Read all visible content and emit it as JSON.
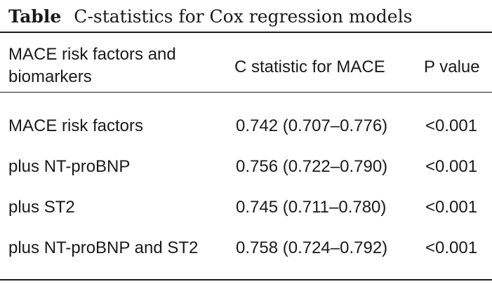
{
  "caption": {
    "label": "Table",
    "title": "C-statistics for Cox regression models"
  },
  "table": {
    "headers": [
      "MACE risk factors and biomarkers",
      "C statistic for MACE",
      "P value"
    ],
    "rows": [
      {
        "model": "MACE risk factors",
        "c_statistic": "0.742 (0.707–0.776)",
        "p_value": "<0.001"
      },
      {
        "model": "plus NT-proBNP",
        "c_statistic": "0.756 (0.722–0.790)",
        "p_value": "<0.001"
      },
      {
        "model": "plus ST2",
        "c_statistic": "0.745 (0.711–0.780)",
        "p_value": "<0.001"
      },
      {
        "model": "plus NT-proBNP and ST2",
        "c_statistic": "0.758 (0.724–0.792)",
        "p_value": "<0.001"
      }
    ]
  }
}
